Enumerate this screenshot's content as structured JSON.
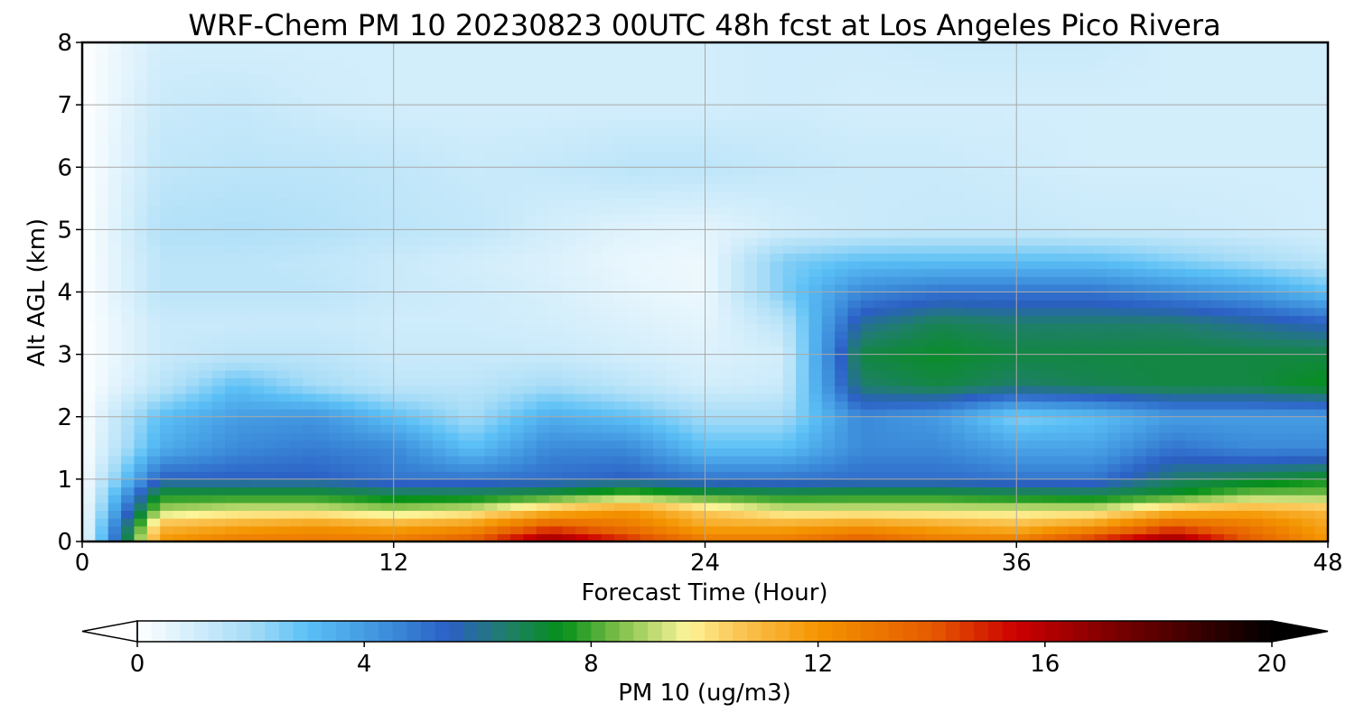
{
  "chart_data": {
    "type": "heatmap",
    "title": "WRF-Chem PM 10  20230823 00UTC 48h fcst at Los Angeles Pico Rivera",
    "xlabel": "Forecast Time (Hour)",
    "ylabel": "Alt AGL (km)",
    "xlim": [
      0,
      48
    ],
    "ylim": [
      0,
      8
    ],
    "xticks": [
      "0",
      "12",
      "24",
      "36",
      "48"
    ],
    "yticks": [
      "0",
      "1",
      "2",
      "3",
      "4",
      "5",
      "6",
      "7",
      "8"
    ],
    "grid": true,
    "x": [
      0,
      3,
      6,
      9,
      12,
      15,
      18,
      21,
      24,
      27,
      30,
      33,
      36,
      39,
      42,
      45,
      48
    ],
    "y": [
      0,
      0.25,
      0.5,
      0.75,
      1,
      1.5,
      2,
      2.5,
      3,
      3.5,
      4,
      4.5,
      5,
      6,
      7,
      8
    ],
    "values": [
      [
        0,
        12,
        13,
        13,
        13,
        14,
        17,
        15,
        13,
        13,
        14,
        13,
        13,
        15,
        17,
        14,
        12
      ],
      [
        0,
        11,
        11.5,
        12,
        11.5,
        12,
        14,
        13,
        11.5,
        11.5,
        12,
        11.5,
        11,
        12,
        14,
        13,
        11.5
      ],
      [
        0,
        9,
        9.5,
        9.5,
        9,
        9.5,
        11,
        12,
        10.5,
        9.5,
        9.5,
        9.5,
        9.5,
        9.5,
        11,
        11.5,
        11
      ],
      [
        0,
        7.5,
        7.5,
        7.5,
        7,
        7,
        7.5,
        8.5,
        7.8,
        7.4,
        7.5,
        7.5,
        7.2,
        7,
        7.5,
        8.5,
        8.5
      ],
      [
        0,
        5.5,
        5.5,
        5.5,
        5,
        5,
        5.2,
        5.5,
        5,
        5,
        5.2,
        5.2,
        5,
        5,
        6.5,
        7,
        7.5
      ],
      [
        0,
        3.5,
        4.5,
        4.8,
        4.5,
        3,
        4.5,
        4.5,
        3,
        3,
        4.5,
        4.5,
        3.8,
        3.8,
        5,
        4.5,
        4.5
      ],
      [
        0,
        3,
        4,
        4.2,
        3,
        2,
        3.5,
        3,
        2,
        2,
        4.5,
        4,
        2.5,
        3,
        4,
        4,
        4
      ],
      [
        0,
        1.5,
        3,
        2,
        1.5,
        1.5,
        2,
        1.5,
        1,
        1.2,
        6.5,
        7,
        6.5,
        6.8,
        7,
        7,
        7.5
      ],
      [
        0,
        1.2,
        1.5,
        1.5,
        1.2,
        1.2,
        1.2,
        1,
        0.8,
        1,
        7,
        7.3,
        7,
        7,
        7,
        7,
        7
      ],
      [
        0,
        1.2,
        1.2,
        1.2,
        1.1,
        1.1,
        1,
        0.8,
        0.6,
        1.5,
        6,
        6.8,
        6.5,
        6.5,
        6.5,
        6,
        5.5
      ],
      [
        0,
        1.5,
        1.5,
        1.5,
        1.2,
        1.1,
        0.9,
        0.6,
        0.4,
        2.5,
        4.5,
        5,
        5,
        5,
        4.5,
        4,
        3
      ],
      [
        0,
        1.5,
        1.5,
        1.4,
        1.2,
        1,
        0.8,
        0.5,
        0.4,
        2.5,
        3,
        3,
        3,
        3,
        2.5,
        2,
        1.5
      ],
      [
        0,
        1.7,
        1.8,
        1.7,
        1.5,
        1.4,
        1,
        0.7,
        0.6,
        1,
        1.2,
        1.3,
        1.3,
        1.2,
        1.2,
        1.1,
        1
      ],
      [
        0,
        1.4,
        1.5,
        1.5,
        1.4,
        1.2,
        1.3,
        1.5,
        1.5,
        1.3,
        1.2,
        1.2,
        1.1,
        1,
        1,
        1,
        1
      ],
      [
        0,
        1.2,
        1.3,
        1.1,
        1,
        1,
        1,
        1,
        1,
        1.1,
        1,
        1,
        1,
        1,
        1,
        1,
        1
      ],
      [
        0,
        1,
        1,
        1,
        1,
        1,
        1,
        1,
        1,
        1.1,
        1.1,
        1.2,
        1.2,
        1.2,
        1,
        1,
        1
      ]
    ],
    "colorbar": {
      "label": "PM 10  (ug/m3)",
      "range": [
        0,
        20
      ],
      "ticks": [
        "0",
        "4",
        "8",
        "12",
        "16",
        "20"
      ],
      "extend": "both",
      "stops": [
        {
          "v": 0,
          "c": "#ffffff"
        },
        {
          "v": 2,
          "c": "#a6dcf7"
        },
        {
          "v": 3,
          "c": "#5bc0f6"
        },
        {
          "v": 4.5,
          "c": "#3b8ad9"
        },
        {
          "v": 5.5,
          "c": "#2b5fc4"
        },
        {
          "v": 6.5,
          "c": "#1f7e6b"
        },
        {
          "v": 7.5,
          "c": "#06901a"
        },
        {
          "v": 8.5,
          "c": "#7fc04a"
        },
        {
          "v": 9.7,
          "c": "#fdf59a"
        },
        {
          "v": 10.5,
          "c": "#fbc95a"
        },
        {
          "v": 12,
          "c": "#f49500"
        },
        {
          "v": 14,
          "c": "#e55a00"
        },
        {
          "v": 15.5,
          "c": "#cc0000"
        },
        {
          "v": 17.5,
          "c": "#6e0000"
        },
        {
          "v": 20,
          "c": "#000000"
        }
      ]
    }
  }
}
